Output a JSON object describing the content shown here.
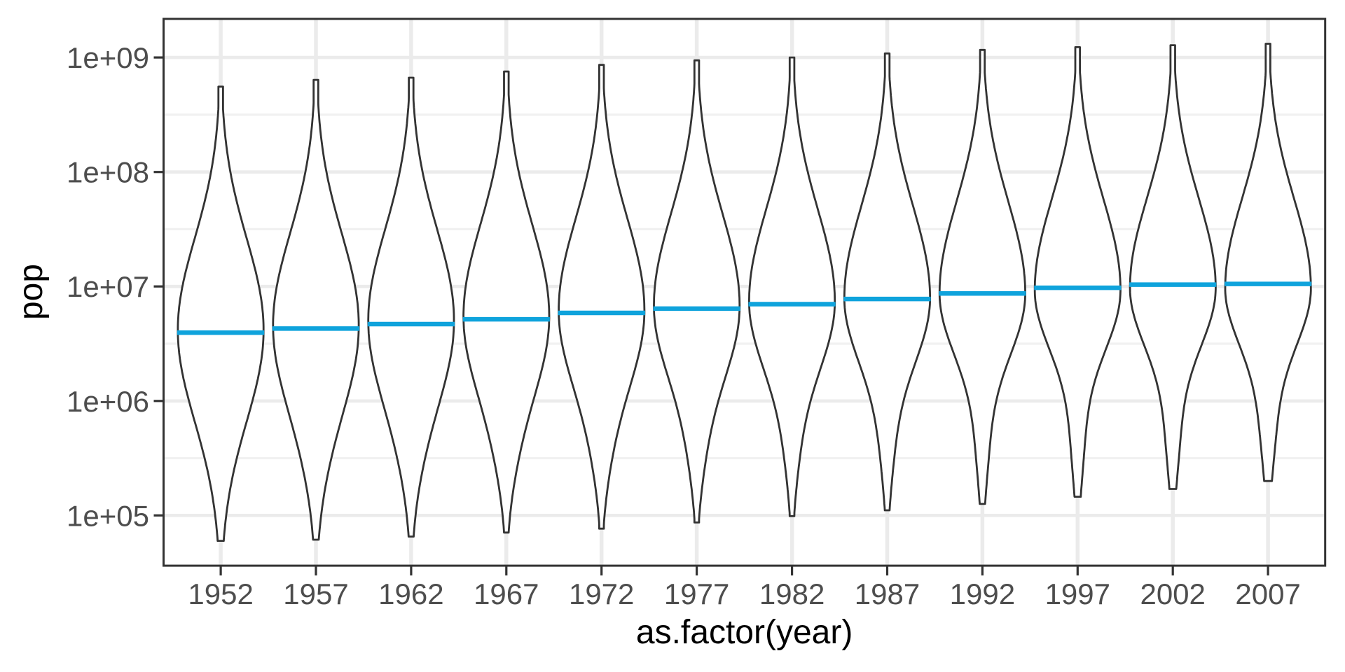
{
  "chart_data": {
    "type": "violin",
    "title": "",
    "xlabel": "as.factor(year)",
    "ylabel": "pop",
    "y_scale": "log10",
    "grid": true,
    "legend": "none",
    "x_categories": [
      "1952",
      "1957",
      "1962",
      "1967",
      "1972",
      "1977",
      "1982",
      "1987",
      "1992",
      "1997",
      "2002",
      "2007"
    ],
    "y_ticks": [
      {
        "label": "1e+05",
        "log10": 5
      },
      {
        "label": "1e+06",
        "log10": 6
      },
      {
        "label": "1e+07",
        "log10": 7
      },
      {
        "label": "1e+08",
        "log10": 8
      },
      {
        "label": "1e+09",
        "log10": 9
      }
    ],
    "y_minor_gridlines_log10": [
      5.5,
      6.5,
      7.5,
      8.5
    ],
    "ylim_log10": [
      4.561,
      9.337
    ],
    "series": [
      {
        "year": "1952",
        "pop_min": 60011,
        "pop_max": 556263527,
        "pop_median": 3943953,
        "density": {
          "peak_log10": 6.62,
          "sigma_low": 0.8,
          "sigma_high": 0.8,
          "tail_amp": 0.0,
          "tail_mu": 5.4,
          "tail_sigma": 0.4
        }
      },
      {
        "year": "1957",
        "pop_min": 61325,
        "pop_max": 637408000,
        "pop_median": 4282942,
        "density": {
          "peak_log10": 6.66,
          "sigma_low": 0.79,
          "sigma_high": 0.8,
          "tail_amp": 0.02,
          "tail_mu": 5.4,
          "tail_sigma": 0.4
        }
      },
      {
        "year": "1962",
        "pop_min": 65345,
        "pop_max": 665770000,
        "pop_median": 4686039,
        "density": {
          "peak_log10": 6.7,
          "sigma_low": 0.77,
          "sigma_high": 0.8,
          "tail_amp": 0.03,
          "tail_mu": 5.45,
          "tail_sigma": 0.4
        }
      },
      {
        "year": "1967",
        "pop_min": 70787,
        "pop_max": 754550000,
        "pop_median": 5170175,
        "density": {
          "peak_log10": 6.74,
          "sigma_low": 0.74,
          "sigma_high": 0.8,
          "tail_amp": 0.05,
          "tail_mu": 5.48,
          "tail_sigma": 0.4
        }
      },
      {
        "year": "1972",
        "pop_min": 76595,
        "pop_max": 862030000,
        "pop_median": 5877996,
        "density": {
          "peak_log10": 6.79,
          "sigma_low": 0.71,
          "sigma_high": 0.8,
          "tail_amp": 0.06,
          "tail_mu": 5.5,
          "tail_sigma": 0.41
        }
      },
      {
        "year": "1977",
        "pop_min": 86796,
        "pop_max": 943455000,
        "pop_median": 6404036,
        "density": {
          "peak_log10": 6.83,
          "sigma_low": 0.67,
          "sigma_high": 0.8,
          "tail_amp": 0.08,
          "tail_mu": 5.52,
          "tail_sigma": 0.41
        }
      },
      {
        "year": "1982",
        "pop_min": 98593,
        "pop_max": 1000281000,
        "pop_median": 7007320,
        "density": {
          "peak_log10": 6.87,
          "sigma_low": 0.63,
          "sigma_high": 0.8,
          "tail_amp": 0.09,
          "tail_mu": 5.54,
          "tail_sigma": 0.42
        }
      },
      {
        "year": "1987",
        "pop_min": 110812,
        "pop_max": 1084035000,
        "pop_median": 7774861,
        "density": {
          "peak_log10": 6.9,
          "sigma_low": 0.6,
          "sigma_high": 0.8,
          "tail_amp": 0.1,
          "tail_mu": 5.56,
          "tail_sigma": 0.42
        }
      },
      {
        "year": "1992",
        "pop_min": 125911,
        "pop_max": 1164970000,
        "pop_median": 8688686,
        "density": {
          "peak_log10": 6.94,
          "sigma_low": 0.57,
          "sigma_high": 0.8,
          "tail_amp": 0.11,
          "tail_mu": 5.58,
          "tail_sigma": 0.42
        }
      },
      {
        "year": "1997",
        "pop_min": 145608,
        "pop_max": 1230075000,
        "pop_median": 9735063,
        "density": {
          "peak_log10": 6.97,
          "sigma_low": 0.55,
          "sigma_high": 0.79,
          "tail_amp": 0.12,
          "tail_mu": 5.62,
          "tail_sigma": 0.43
        }
      },
      {
        "year": "2002",
        "pop_min": 170372,
        "pop_max": 1280400000,
        "pop_median": 10372918,
        "density": {
          "peak_log10": 6.99,
          "sigma_low": 0.54,
          "sigma_high": 0.78,
          "tail_amp": 0.13,
          "tail_mu": 5.68,
          "tail_sigma": 0.43
        }
      },
      {
        "year": "2007",
        "pop_min": 199579,
        "pop_max": 1318683096,
        "pop_median": 10517531,
        "density": {
          "peak_log10": 6.99,
          "sigma_low": 0.53,
          "sigma_high": 0.78,
          "tail_amp": 0.14,
          "tail_mu": 5.74,
          "tail_sigma": 0.44
        }
      }
    ],
    "style": {
      "background": "#FFFFFF",
      "panel_background": "#FFFFFF",
      "panel_border": "#333333",
      "grid_major": "#EBEBEB",
      "grid_minor": "#F1F1F1",
      "violin_outline": "#333333",
      "violin_fill": "#FFFFFF",
      "median_line": "#0FA3DC",
      "tick_mark": "#333333",
      "tick_label_color": "#4D4D4D",
      "axis_title_color": "#000000"
    }
  }
}
